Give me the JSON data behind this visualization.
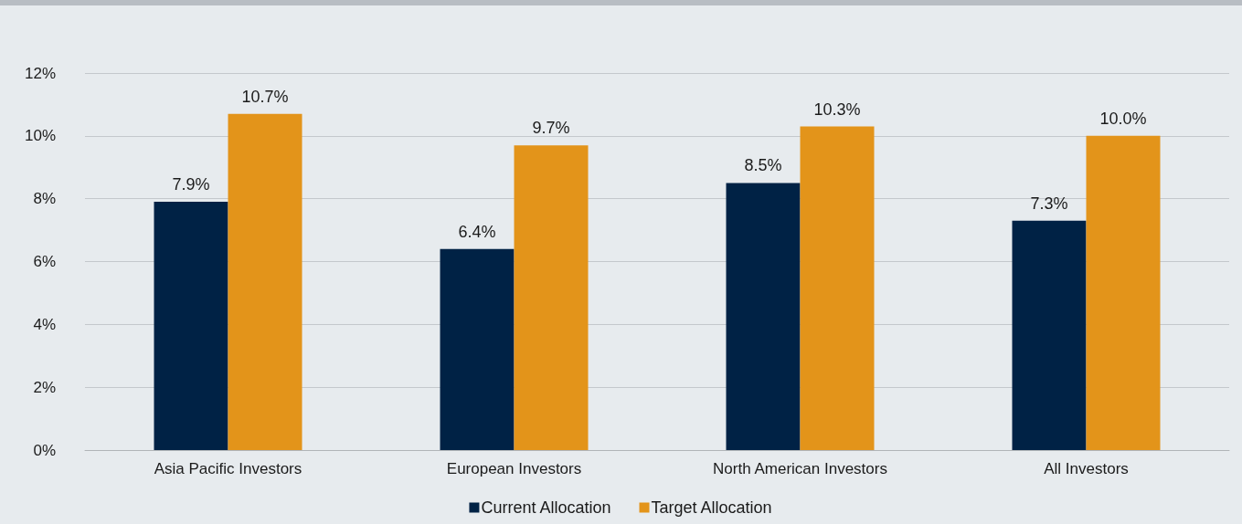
{
  "chart_data": {
    "type": "bar",
    "categories": [
      "Asia Pacific Investors",
      "European Investors",
      "North American Investors",
      "All Investors"
    ],
    "series": [
      {
        "name": "Current Allocation",
        "color": "#002245",
        "values": [
          7.9,
          6.4,
          8.5,
          7.3
        ],
        "value_labels": [
          "7.9%",
          "6.4%",
          "8.5%",
          "7.3%"
        ]
      },
      {
        "name": "Target Allocation",
        "color": "#e3941a",
        "values": [
          10.7,
          9.7,
          10.3,
          10.0
        ],
        "value_labels": [
          "10.7%",
          "9.7%",
          "10.3%",
          "10.0%"
        ]
      }
    ],
    "ylim": [
      0,
      12
    ],
    "yticks": [
      {
        "value": 0,
        "label": "0%"
      },
      {
        "value": 2,
        "label": "2%"
      },
      {
        "value": 4,
        "label": "4%"
      },
      {
        "value": 6,
        "label": "6%"
      },
      {
        "value": 8,
        "label": "8%"
      },
      {
        "value": 10,
        "label": "10%"
      },
      {
        "value": 12,
        "label": "12%"
      }
    ],
    "grid": "y",
    "legend": "bottom"
  }
}
